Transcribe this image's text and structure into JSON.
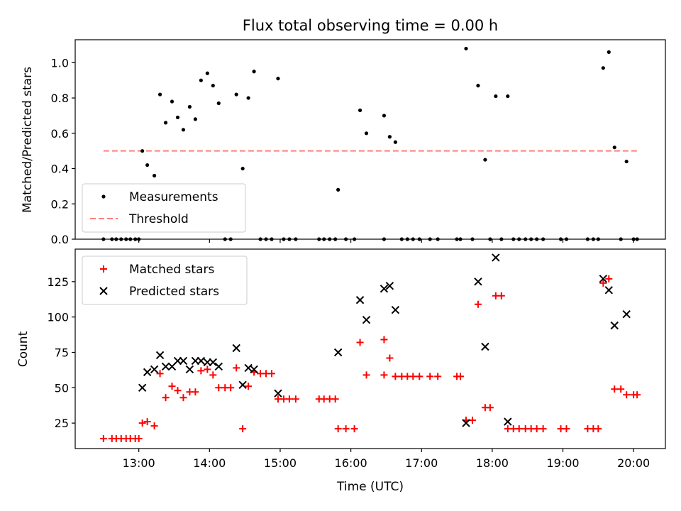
{
  "chart_data": [
    {
      "type": "scatter",
      "title": "Flux total observing time = 0.00 h",
      "ylabel": "Matched/Predicted stars",
      "ylim": [
        0,
        1.13
      ],
      "yticks": [
        0.0,
        0.2,
        0.4,
        0.6,
        0.8,
        1.0
      ],
      "ytick_labels": [
        "0.0",
        "0.2",
        "0.4",
        "0.6",
        "0.8",
        "1.0"
      ],
      "legend_position": "lower-left",
      "grid": false,
      "series": [
        {
          "name": "Measurements",
          "marker": "dot",
          "color": "#000000",
          "points": [
            [
              12.5,
              0
            ],
            [
              12.62,
              0
            ],
            [
              12.68,
              0
            ],
            [
              12.75,
              0
            ],
            [
              12.82,
              0
            ],
            [
              12.88,
              0
            ],
            [
              12.95,
              0
            ],
            [
              13.0,
              0
            ],
            [
              13.05,
              0.5
            ],
            [
              13.12,
              0.42
            ],
            [
              13.22,
              0.36
            ],
            [
              13.3,
              0.82
            ],
            [
              13.38,
              0.66
            ],
            [
              13.47,
              0.78
            ],
            [
              13.55,
              0.69
            ],
            [
              13.63,
              0.62
            ],
            [
              13.72,
              0.75
            ],
            [
              13.8,
              0.68
            ],
            [
              13.88,
              0.9
            ],
            [
              13.97,
              0.94
            ],
            [
              14.05,
              0.87
            ],
            [
              14.13,
              0.77
            ],
            [
              14.22,
              0
            ],
            [
              14.3,
              0
            ],
            [
              14.38,
              0.82
            ],
            [
              14.47,
              0.4
            ],
            [
              14.55,
              0.8
            ],
            [
              14.63,
              0.95
            ],
            [
              14.72,
              0
            ],
            [
              14.8,
              0
            ],
            [
              14.88,
              0
            ],
            [
              14.97,
              0.91
            ],
            [
              15.05,
              0
            ],
            [
              15.13,
              0
            ],
            [
              15.22,
              0
            ],
            [
              15.55,
              0
            ],
            [
              15.62,
              0
            ],
            [
              15.7,
              0
            ],
            [
              15.78,
              0
            ],
            [
              15.82,
              0.28
            ],
            [
              15.93,
              0
            ],
            [
              16.05,
              0
            ],
            [
              16.13,
              0.73
            ],
            [
              16.22,
              0.6
            ],
            [
              16.47,
              0.7
            ],
            [
              16.47,
              0
            ],
            [
              16.55,
              0.58
            ],
            [
              16.63,
              0.55
            ],
            [
              16.72,
              0
            ],
            [
              16.8,
              0
            ],
            [
              16.88,
              0
            ],
            [
              16.97,
              0
            ],
            [
              17.12,
              0
            ],
            [
              17.23,
              0
            ],
            [
              17.5,
              0
            ],
            [
              17.55,
              0
            ],
            [
              17.63,
              1.08
            ],
            [
              17.72,
              0
            ],
            [
              17.8,
              0.87
            ],
            [
              17.9,
              0.45
            ],
            [
              17.97,
              0
            ],
            [
              18.05,
              0.81
            ],
            [
              18.13,
              0
            ],
            [
              18.22,
              0.81
            ],
            [
              18.3,
              0
            ],
            [
              18.38,
              0
            ],
            [
              18.47,
              0
            ],
            [
              18.55,
              0
            ],
            [
              18.63,
              0
            ],
            [
              18.72,
              0
            ],
            [
              18.97,
              0
            ],
            [
              19.05,
              0
            ],
            [
              19.35,
              0
            ],
            [
              19.43,
              0
            ],
            [
              19.5,
              0
            ],
            [
              19.57,
              0.97
            ],
            [
              19.65,
              1.06
            ],
            [
              19.73,
              0.52
            ],
            [
              19.82,
              0
            ],
            [
              19.9,
              0.44
            ],
            [
              20.0,
              0
            ],
            [
              20.05,
              0
            ]
          ]
        },
        {
          "name": "Threshold",
          "marker": "dashed-line",
          "color": "#ff7f7f",
          "points": [
            [
              12.5,
              0.5
            ],
            [
              20.05,
              0.5
            ]
          ]
        }
      ]
    },
    {
      "type": "scatter",
      "xlabel": "Time (UTC)",
      "ylabel": "Count",
      "xlim": [
        12.1,
        20.45
      ],
      "ylim": [
        7,
        148
      ],
      "xticks": [
        13,
        14,
        15,
        16,
        17,
        18,
        19,
        20
      ],
      "xtick_labels": [
        "13:00",
        "14:00",
        "15:00",
        "16:00",
        "17:00",
        "18:00",
        "19:00",
        "20:00"
      ],
      "yticks": [
        25,
        50,
        75,
        100,
        125
      ],
      "ytick_labels": [
        "25",
        "50",
        "75",
        "100",
        "125"
      ],
      "legend_position": "upper-left",
      "grid": false,
      "series": [
        {
          "name": "Matched stars",
          "marker": "plus",
          "color": "#ff0000",
          "points": [
            [
              12.5,
              14
            ],
            [
              12.62,
              14
            ],
            [
              12.68,
              14
            ],
            [
              12.75,
              14
            ],
            [
              12.82,
              14
            ],
            [
              12.88,
              14
            ],
            [
              12.95,
              14
            ],
            [
              13.0,
              14
            ],
            [
              13.05,
              25
            ],
            [
              13.12,
              26
            ],
            [
              13.22,
              23
            ],
            [
              13.3,
              60
            ],
            [
              13.38,
              43
            ],
            [
              13.47,
              51
            ],
            [
              13.55,
              48
            ],
            [
              13.63,
              43
            ],
            [
              13.72,
              47
            ],
            [
              13.8,
              47
            ],
            [
              13.88,
              62
            ],
            [
              13.97,
              63
            ],
            [
              14.05,
              59
            ],
            [
              14.13,
              50
            ],
            [
              14.22,
              50
            ],
            [
              14.3,
              50
            ],
            [
              14.38,
              64
            ],
            [
              14.47,
              21
            ],
            [
              14.55,
              51
            ],
            [
              14.63,
              61
            ],
            [
              14.72,
              60
            ],
            [
              14.8,
              60
            ],
            [
              14.88,
              60
            ],
            [
              14.97,
              42
            ],
            [
              15.05,
              42
            ],
            [
              15.13,
              42
            ],
            [
              15.22,
              42
            ],
            [
              15.55,
              42
            ],
            [
              15.62,
              42
            ],
            [
              15.7,
              42
            ],
            [
              15.78,
              42
            ],
            [
              15.82,
              21
            ],
            [
              15.93,
              21
            ],
            [
              16.05,
              21
            ],
            [
              16.13,
              82
            ],
            [
              16.22,
              59
            ],
            [
              16.47,
              59
            ],
            [
              16.47,
              84
            ],
            [
              16.55,
              71
            ],
            [
              16.63,
              58
            ],
            [
              16.72,
              58
            ],
            [
              16.8,
              58
            ],
            [
              16.88,
              58
            ],
            [
              16.97,
              58
            ],
            [
              17.12,
              58
            ],
            [
              17.23,
              58
            ],
            [
              17.5,
              58
            ],
            [
              17.55,
              58
            ],
            [
              17.63,
              27
            ],
            [
              17.72,
              27
            ],
            [
              17.8,
              109
            ],
            [
              17.9,
              36
            ],
            [
              17.97,
              36
            ],
            [
              18.05,
              115
            ],
            [
              18.13,
              115
            ],
            [
              18.22,
              21
            ],
            [
              18.3,
              21
            ],
            [
              18.38,
              21
            ],
            [
              18.47,
              21
            ],
            [
              18.55,
              21
            ],
            [
              18.63,
              21
            ],
            [
              18.72,
              21
            ],
            [
              18.97,
              21
            ],
            [
              19.05,
              21
            ],
            [
              19.35,
              21
            ],
            [
              19.43,
              21
            ],
            [
              19.5,
              21
            ],
            [
              19.57,
              124
            ],
            [
              19.65,
              127
            ],
            [
              19.73,
              49
            ],
            [
              19.82,
              49
            ],
            [
              19.9,
              45
            ],
            [
              20.0,
              45
            ],
            [
              20.05,
              45
            ]
          ]
        },
        {
          "name": "Predicted stars",
          "marker": "x",
          "color": "#000000",
          "points": [
            [
              13.05,
              50
            ],
            [
              13.12,
              61
            ],
            [
              13.22,
              63
            ],
            [
              13.3,
              73
            ],
            [
              13.38,
              65
            ],
            [
              13.47,
              65
            ],
            [
              13.55,
              69
            ],
            [
              13.63,
              69
            ],
            [
              13.72,
              63
            ],
            [
              13.8,
              69
            ],
            [
              13.88,
              69
            ],
            [
              13.97,
              68
            ],
            [
              14.05,
              68
            ],
            [
              14.13,
              65
            ],
            [
              14.38,
              78
            ],
            [
              14.47,
              52
            ],
            [
              14.55,
              64
            ],
            [
              14.63,
              63
            ],
            [
              14.97,
              46
            ],
            [
              15.82,
              75
            ],
            [
              16.13,
              112
            ],
            [
              16.22,
              98
            ],
            [
              16.47,
              120
            ],
            [
              16.55,
              122
            ],
            [
              16.63,
              105
            ],
            [
              17.63,
              25
            ],
            [
              17.8,
              125
            ],
            [
              17.9,
              79
            ],
            [
              18.05,
              142
            ],
            [
              18.22,
              26
            ],
            [
              19.57,
              127
            ],
            [
              19.65,
              119
            ],
            [
              19.73,
              94
            ],
            [
              19.9,
              102
            ]
          ]
        }
      ]
    }
  ]
}
